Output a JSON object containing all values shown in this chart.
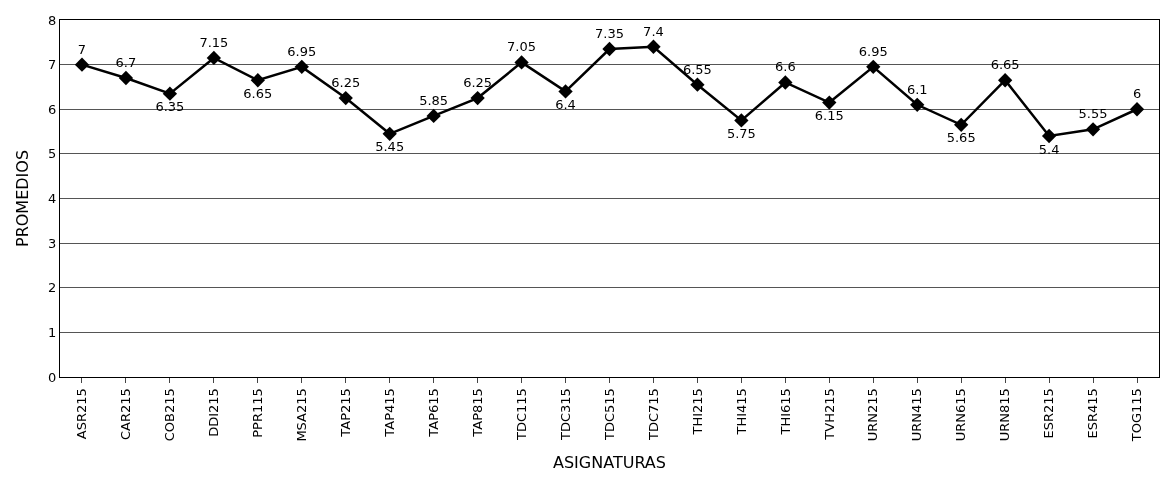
{
  "chart_data": {
    "type": "line",
    "xlabel": "ASIGNATURAS",
    "ylabel": "PROMEDIOS",
    "categories": [
      "ASR215",
      "CAR215",
      "COB215",
      "DDI215",
      "PPR115",
      "MSA215",
      "TAP215",
      "TAP415",
      "TAP615",
      "TAP815",
      "TDC115",
      "TDC315",
      "TDC515",
      "TDC715",
      "THI215",
      "THI415",
      "THI615",
      "TVH215",
      "URN215",
      "URN415",
      "URN615",
      "URN815",
      "ESR215",
      "ESR415",
      "TOG115"
    ],
    "series": [
      {
        "color": "#000000",
        "values": [
          7,
          6.7,
          6.35,
          7.15,
          6.65,
          6.95,
          6.25,
          5.45,
          5.85,
          6.25,
          7.05,
          6.4,
          7.35,
          7.4,
          6.55,
          5.75,
          6.6,
          6.15,
          6.95,
          6.1,
          5.65,
          6.65,
          5.4,
          5.55,
          6
        ]
      }
    ],
    "ylim": [
      0,
      8
    ],
    "yticks": [
      0,
      1,
      2,
      3,
      4,
      5,
      6,
      7,
      8
    ],
    "grid": "y",
    "marker": "diamond",
    "line_style": "solid",
    "data_labels": true,
    "legend": false
  }
}
